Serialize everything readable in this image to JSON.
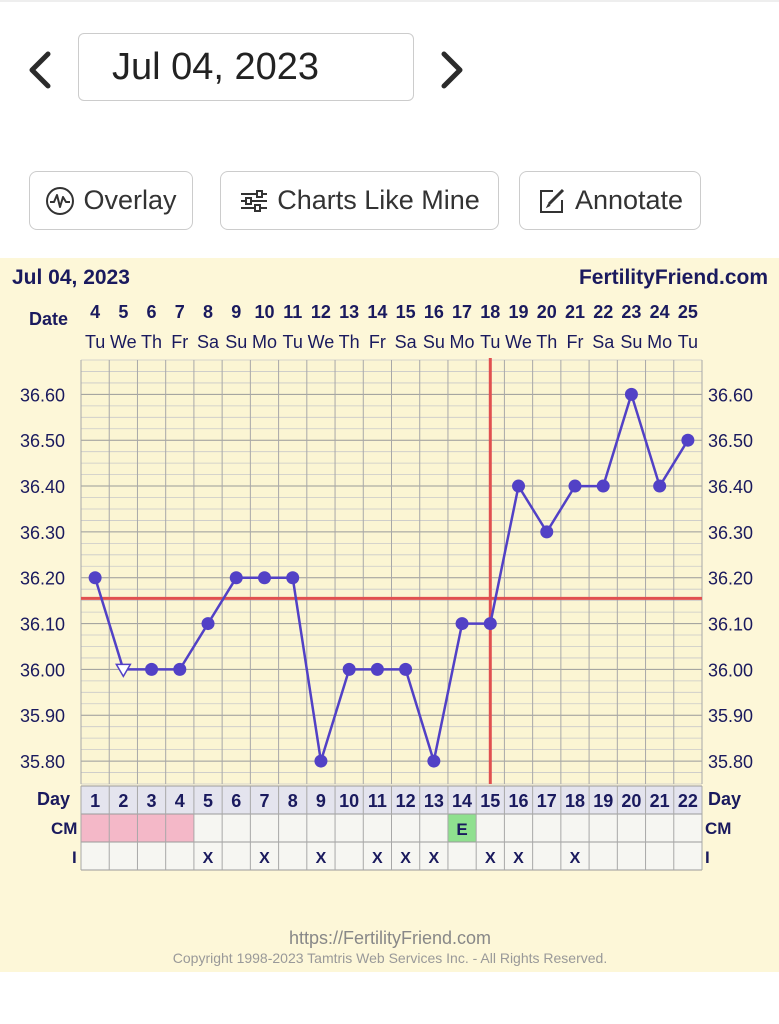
{
  "header": {
    "date_label": "Jul 04, 2023",
    "prev_icon": "chevron-left-icon",
    "next_icon": "chevron-right-icon"
  },
  "toolbar": {
    "overlay_label": "Overlay",
    "overlay_icon": "waveform-circle-icon",
    "charts_like_mine_label": "Charts Like Mine",
    "charts_like_mine_icon": "sliders-icon",
    "annotate_label": "Annotate",
    "annotate_icon": "edit-pencil-icon"
  },
  "chart_data": {
    "type": "line",
    "title": "Jul 04, 2023",
    "brand": "FertilityFriend.com",
    "date_row_label": "Date",
    "day_row_label": "Day",
    "cm_row_label": "CM",
    "i_row_label": "I",
    "dates": [
      "4",
      "5",
      "6",
      "7",
      "8",
      "9",
      "10",
      "11",
      "12",
      "13",
      "14",
      "15",
      "16",
      "17",
      "18",
      "19",
      "20",
      "21",
      "22",
      "23",
      "24",
      "25"
    ],
    "weekdays": [
      "Tu",
      "We",
      "Th",
      "Fr",
      "Sa",
      "Su",
      "Mo",
      "Tu",
      "We",
      "Th",
      "Fr",
      "Sa",
      "Su",
      "Mo",
      "Tu",
      "We",
      "Th",
      "Fr",
      "Sa",
      "Su",
      "Mo",
      "Tu"
    ],
    "cycle_days": [
      "1",
      "2",
      "3",
      "4",
      "5",
      "6",
      "7",
      "8",
      "9",
      "10",
      "11",
      "12",
      "13",
      "14",
      "15",
      "16",
      "17",
      "18",
      "19",
      "20",
      "21",
      "22"
    ],
    "temperatures": [
      36.2,
      36.0,
      36.0,
      36.0,
      36.1,
      36.2,
      36.2,
      36.2,
      35.8,
      36.0,
      36.0,
      36.0,
      35.8,
      36.1,
      36.1,
      36.4,
      36.3,
      36.4,
      36.4,
      36.6,
      36.4,
      36.5
    ],
    "discarded_days": [
      2
    ],
    "y_ticks": [
      "36.60",
      "36.50",
      "36.40",
      "36.30",
      "36.20",
      "36.10",
      "36.00",
      "35.90",
      "35.80"
    ],
    "y_tick_values": [
      36.6,
      36.5,
      36.4,
      36.3,
      36.2,
      36.1,
      36.0,
      35.9,
      35.8
    ],
    "ylim": [
      35.75,
      36.675
    ],
    "coverline": 36.155,
    "ovulation_day": 15,
    "menstruation_days": [
      1,
      2,
      3,
      4
    ],
    "cm": [
      {
        "day": 14,
        "label": "E"
      }
    ],
    "intercourse_days": [
      5,
      7,
      9,
      11,
      12,
      13,
      15,
      16,
      18
    ],
    "intercourse_label": "X",
    "grid": true,
    "colors": {
      "line": "#5241c6",
      "coverline": "#e05050",
      "period": "#f4b8c8",
      "cm_egg_white": "#8fe08f",
      "background": "#fdf7d8"
    }
  },
  "footer": {
    "url": "https://FertilityFriend.com",
    "copyright": "Copyright 1998-2023 Tamtris Web Services Inc. - All Rights Reserved."
  }
}
